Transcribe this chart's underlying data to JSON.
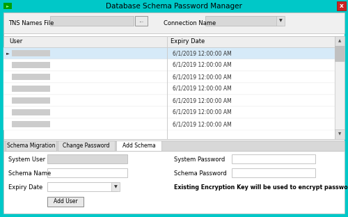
{
  "title": "Database Schema Password Manager",
  "title_bar_color": "#00C8C8",
  "window_bg": "#FFFFFF",
  "panel_bg": "#F0F0F0",
  "tns_label": "TNS Names File",
  "connection_label": "Connection Name",
  "table_headers": [
    "User",
    "Expiry Date"
  ],
  "table_rows": [
    "6/1/2019 12:00:00 AM",
    "6/1/2019 12:00:00 AM",
    "6/1/2019 12:00:00 AM",
    "6/1/2019 12:00:00 AM",
    "6/1/2019 12:00:00 AM",
    "6/1/2019 12:00:00 AM",
    "6/1/2019 12:00:00 AM"
  ],
  "tabs": [
    "Schema Migration",
    "Change Password",
    "Add Schema"
  ],
  "active_tab_idx": 2,
  "form_left_labels": [
    "System User",
    "Schema Name",
    "Expiry Date"
  ],
  "form_right_labels": [
    "System Password",
    "Schema Password"
  ],
  "encryption_note": "Existing Encryption Key will be used to encrypt password",
  "button_label": "Add User",
  "close_btn_color": "#CC2222",
  "input_bg": "#FFFFFF",
  "input_blurred_bg": "#D8D8D8",
  "header_bg": "#F0F0F0",
  "selected_row_bg": "#D6EAF8",
  "scrollbar_bg": "#F0F0F0",
  "scrollbar_thumb": "#C0C0C0",
  "tab_active_bg": "#FFFFFF",
  "tab_inactive_bg": "#E0E0E0",
  "border_color": "#BBBBBB",
  "dark_border": "#888888"
}
